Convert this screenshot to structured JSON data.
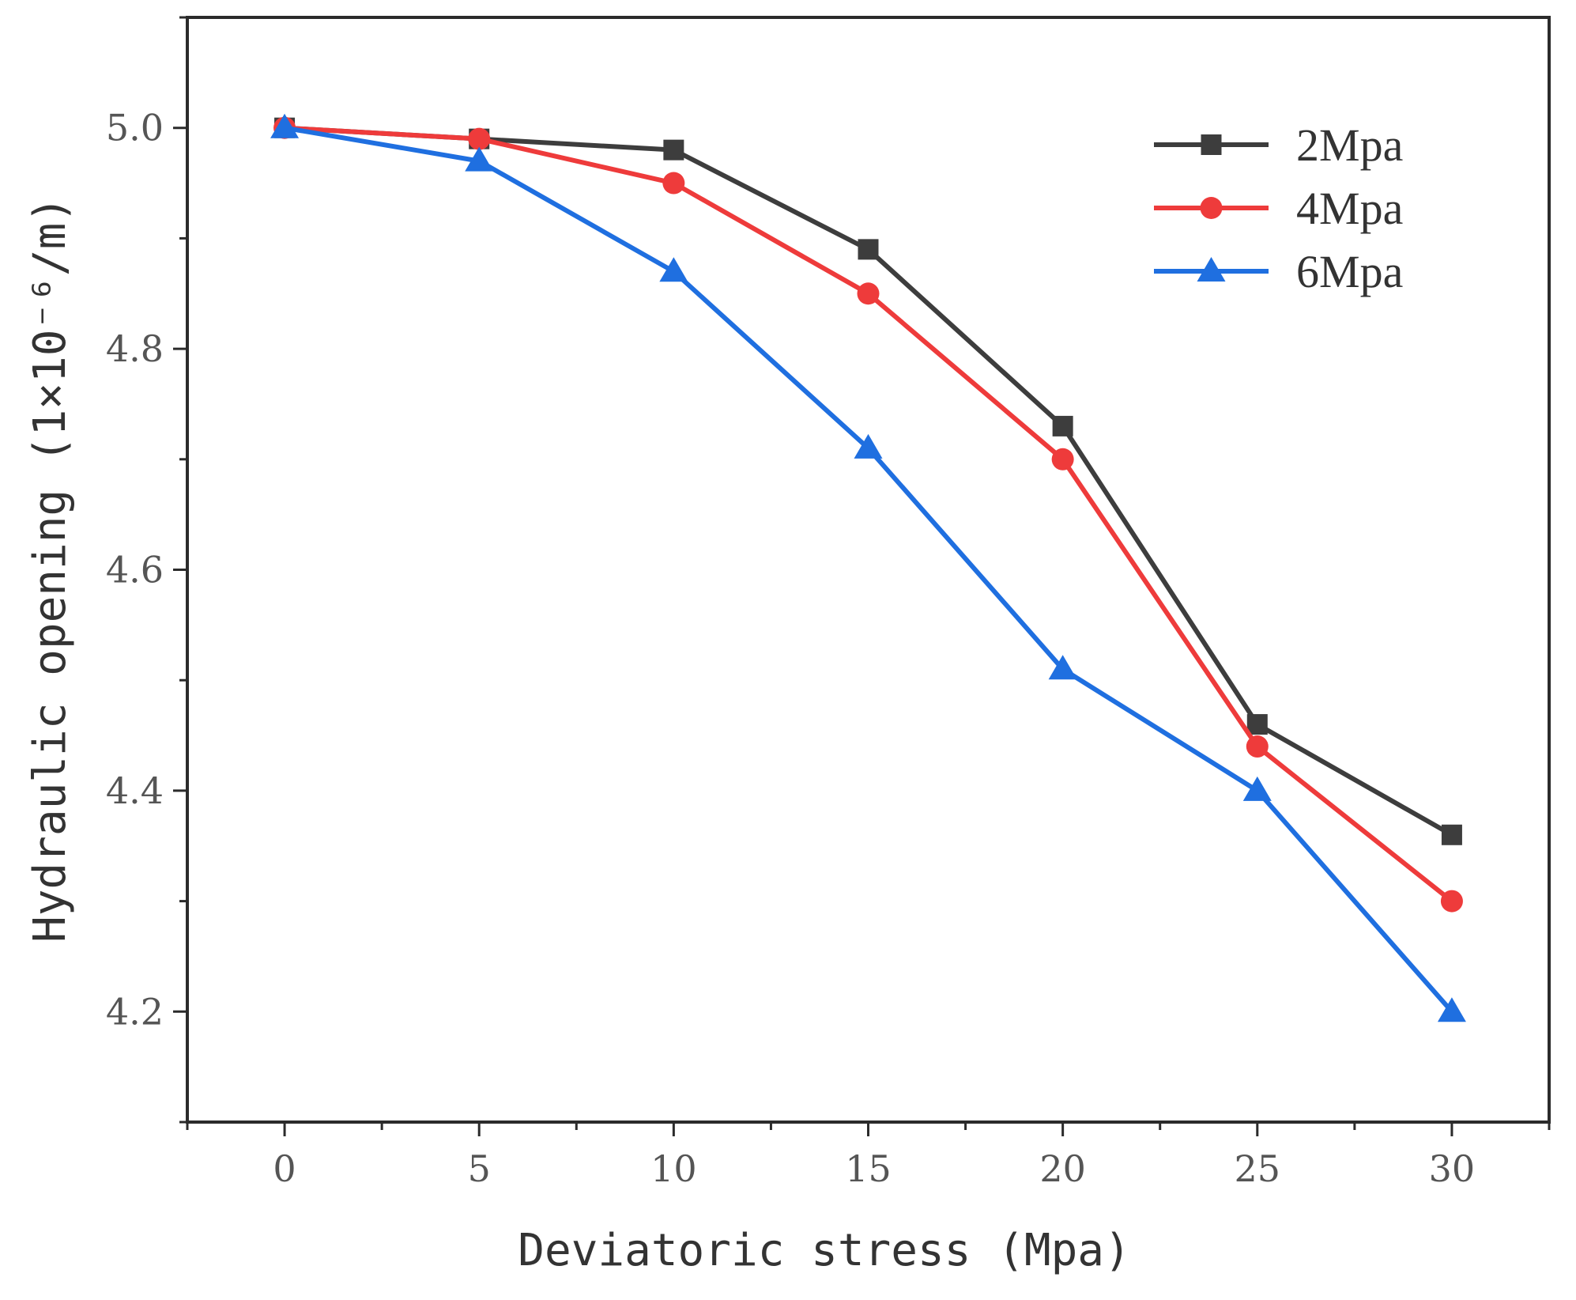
{
  "chart_data": {
    "type": "line",
    "title": "",
    "xlabel": "Deviatoric stress (Mpa)",
    "ylabel": "Hydraulic opening (1×10⁻⁶/m)",
    "x": [
      0,
      5,
      10,
      15,
      20,
      25,
      30
    ],
    "xlim": [
      -2.5,
      32.5
    ],
    "ylim": [
      4.1,
      5.1
    ],
    "xticks": [
      0,
      5,
      10,
      15,
      20,
      25,
      30
    ],
    "xtick_labels": [
      "0",
      "5",
      "10",
      "15",
      "20",
      "25",
      "30"
    ],
    "yticks": [
      4.2,
      4.4,
      4.6,
      4.8,
      5.0
    ],
    "ytick_labels": [
      "4.2",
      "4.4",
      "4.6",
      "4.8",
      "5.0"
    ],
    "grid": false,
    "legend_position": "top-right",
    "series": [
      {
        "name": "2Mpa",
        "color": "#3d3d3d",
        "marker": "square",
        "values": [
          5.0,
          4.99,
          4.98,
          4.89,
          4.73,
          4.46,
          4.36
        ]
      },
      {
        "name": "4Mpa",
        "color": "#ee3b3b",
        "marker": "circle",
        "values": [
          5.0,
          4.99,
          4.95,
          4.85,
          4.7,
          4.44,
          4.3
        ]
      },
      {
        "name": "6Mpa",
        "color": "#1f6fe0",
        "marker": "triangle",
        "values": [
          5.0,
          4.97,
          4.87,
          4.71,
          4.51,
          4.4,
          4.2
        ]
      }
    ]
  }
}
